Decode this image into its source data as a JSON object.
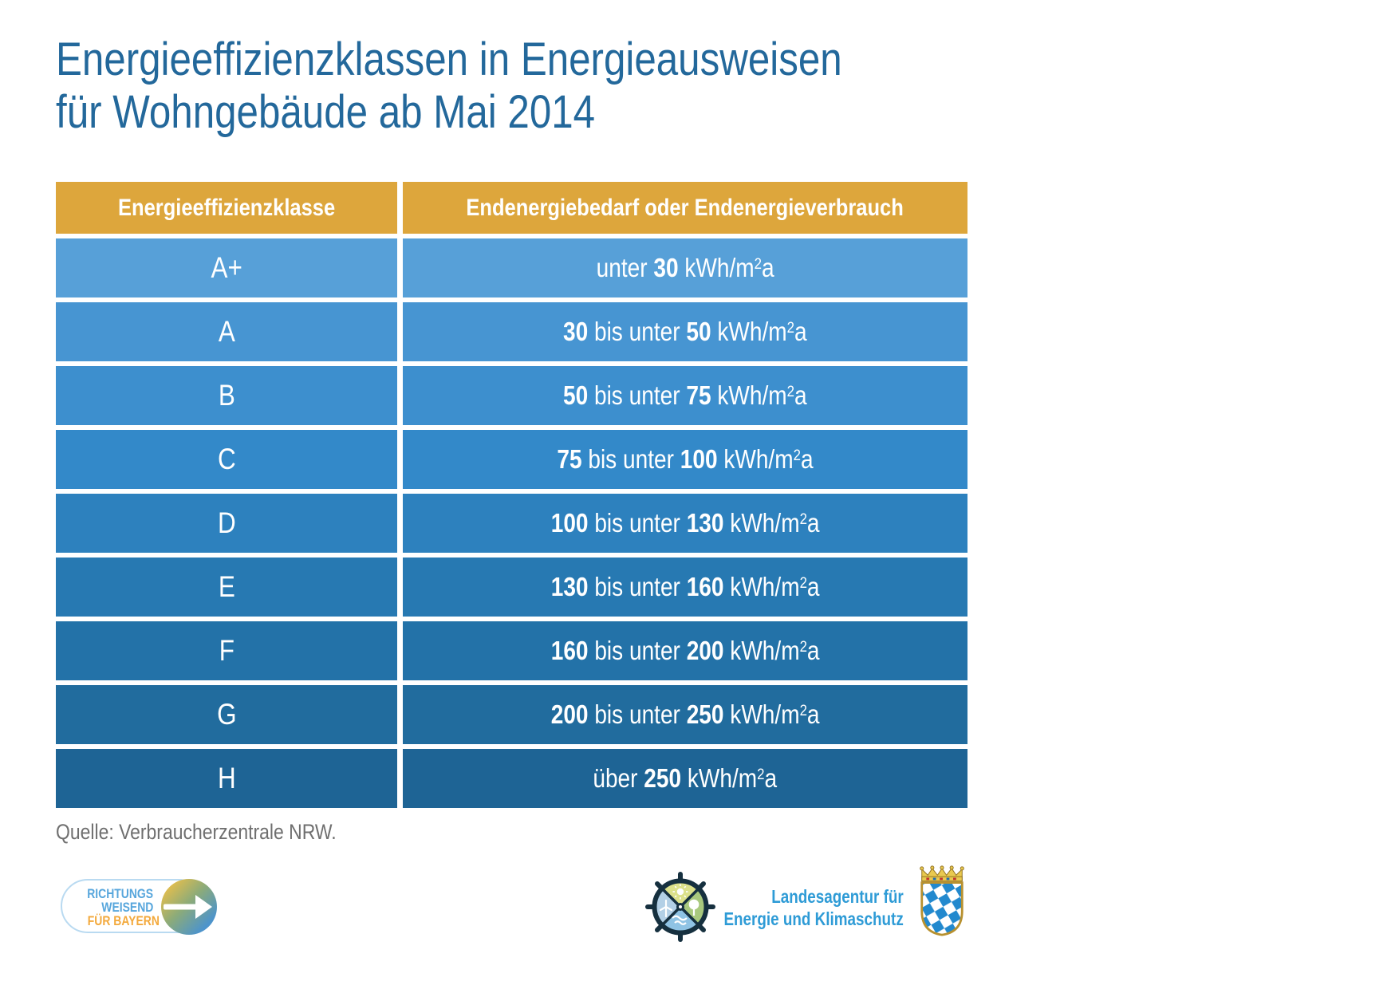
{
  "title": {
    "line1": "Energieeffizienzklassen in Energieausweisen",
    "line2": "für Wohngebäude ab Mai 2014"
  },
  "table": {
    "header_bg": "#DDA63C",
    "headers": [
      "Energieeffizienzklasse",
      "Endenergiebedarf oder Endenergieverbrauch"
    ],
    "rows": [
      {
        "class": "A+",
        "bg": "#57A0D8",
        "value": [
          [
            "unter ",
            "n"
          ],
          [
            "30",
            "b"
          ],
          [
            " kWh/m",
            "n"
          ],
          [
            "2",
            "sup"
          ],
          [
            "a",
            "n"
          ]
        ]
      },
      {
        "class": "A",
        "bg": "#4795D2",
        "value": [
          [
            "30",
            "b"
          ],
          [
            " bis unter ",
            "n"
          ],
          [
            "50",
            "b"
          ],
          [
            " kWh/m",
            "n"
          ],
          [
            "2",
            "sup"
          ],
          [
            "a",
            "n"
          ]
        ]
      },
      {
        "class": "B",
        "bg": "#3D8FCE",
        "value": [
          [
            "50",
            "b"
          ],
          [
            " bis unter ",
            "n"
          ],
          [
            "75",
            "b"
          ],
          [
            " kWh/m",
            "n"
          ],
          [
            "2",
            "sup"
          ],
          [
            "a",
            "n"
          ]
        ]
      },
      {
        "class": "C",
        "bg": "#3389C9",
        "value": [
          [
            "75",
            "b"
          ],
          [
            " bis unter ",
            "n"
          ],
          [
            "100",
            "b"
          ],
          [
            " kWh/m",
            "n"
          ],
          [
            "2",
            "sup"
          ],
          [
            "a",
            "n"
          ]
        ]
      },
      {
        "class": "D",
        "bg": "#2D81BE",
        "value": [
          [
            "100",
            "b"
          ],
          [
            " bis unter ",
            "n"
          ],
          [
            "130",
            "b"
          ],
          [
            " kWh/m",
            "n"
          ],
          [
            "2",
            "sup"
          ],
          [
            "a",
            "n"
          ]
        ]
      },
      {
        "class": "E",
        "bg": "#2779B2",
        "value": [
          [
            "130",
            "b"
          ],
          [
            " bis unter ",
            "n"
          ],
          [
            "160",
            "b"
          ],
          [
            " kWh/m",
            "n"
          ],
          [
            "2",
            "sup"
          ],
          [
            "a",
            "n"
          ]
        ]
      },
      {
        "class": "F",
        "bg": "#2372A8",
        "value": [
          [
            "160",
            "b"
          ],
          [
            " bis unter ",
            "n"
          ],
          [
            "200",
            "b"
          ],
          [
            " kWh/m",
            "n"
          ],
          [
            "2",
            "sup"
          ],
          [
            "a",
            "n"
          ]
        ]
      },
      {
        "class": "G",
        "bg": "#216C9E",
        "value": [
          [
            "200",
            "b"
          ],
          [
            " bis unter ",
            "n"
          ],
          [
            "250",
            "b"
          ],
          [
            " kWh/m",
            "n"
          ],
          [
            "2",
            "sup"
          ],
          [
            "a",
            "n"
          ]
        ]
      },
      {
        "class": "H",
        "bg": "#1E6495",
        "value": [
          [
            "über ",
            "n"
          ],
          [
            "250",
            "b"
          ],
          [
            " kWh/m",
            "n"
          ],
          [
            "2",
            "sup"
          ],
          [
            "a",
            "n"
          ]
        ]
      }
    ]
  },
  "source": "Quelle: Verbraucherzentrale NRW.",
  "footer": {
    "badge": {
      "line1": "RICHTUNGS",
      "line2": "WEISEND",
      "line3": "FÜR BAYERN"
    },
    "agency": {
      "line1": "Landesagentur für",
      "line2": "Energie und Klimaschutz"
    }
  },
  "colors": {
    "title_blue": "#23689B",
    "header_gold": "#DDA63C",
    "badge_blue": "#57A6DC",
    "badge_orange": "#F3A93C",
    "agency_blue": "#2E9BD6",
    "source_gray": "#6F6F6F"
  },
  "chart_data": {
    "type": "table",
    "title": "Energieeffizienzklassen in Energieausweisen für Wohngebäude ab Mai 2014",
    "columns": [
      "Energieeffizienzklasse",
      "Endenergiebedarf oder Endenergieverbrauch"
    ],
    "rows": [
      [
        "A+",
        "unter 30 kWh/m²a"
      ],
      [
        "A",
        "30 bis unter 50 kWh/m²a"
      ],
      [
        "B",
        "50 bis unter 75 kWh/m²a"
      ],
      [
        "C",
        "75 bis unter 100 kWh/m²a"
      ],
      [
        "D",
        "100 bis unter 130 kWh/m²a"
      ],
      [
        "E",
        "130 bis unter 160 kWh/m²a"
      ],
      [
        "F",
        "160 bis unter 200 kWh/m²a"
      ],
      [
        "G",
        "200 bis unter 250 kWh/m²a"
      ],
      [
        "H",
        "über 250 kWh/m²a"
      ]
    ],
    "source": "Quelle: Verbraucherzentrale NRW."
  }
}
